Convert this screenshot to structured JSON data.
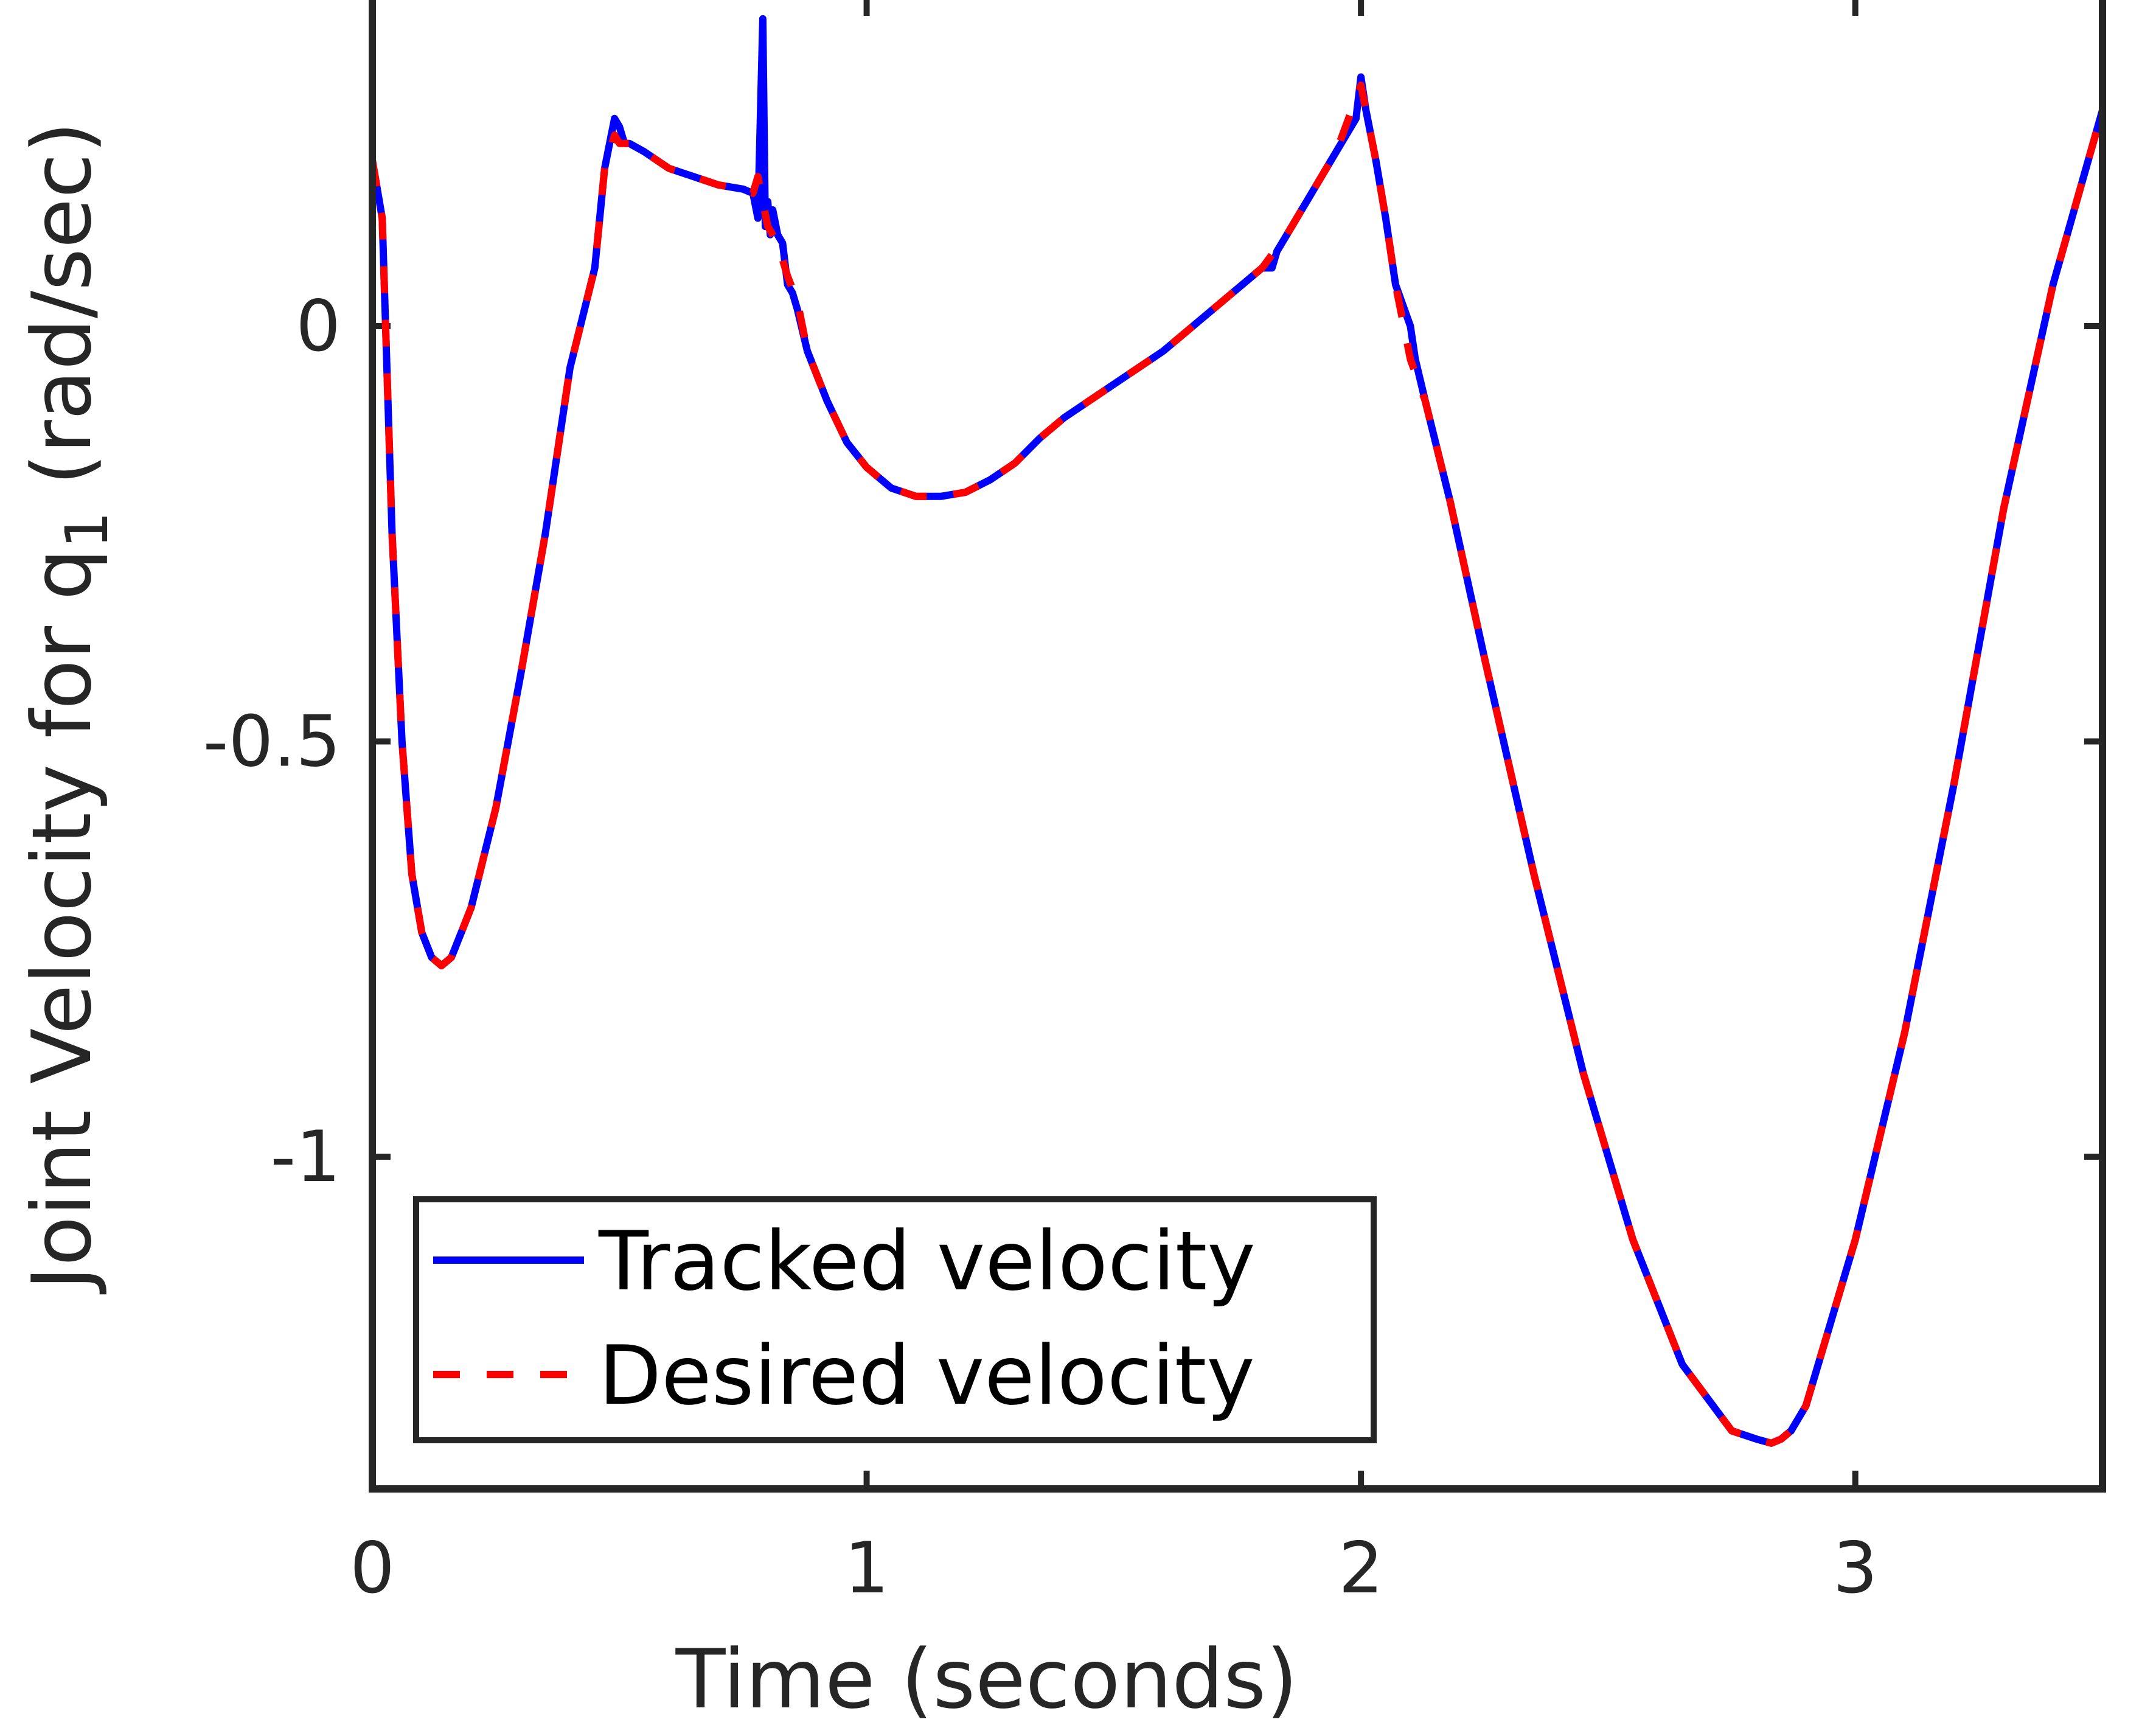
{
  "chart_data": {
    "type": "line",
    "title": "",
    "xlabel": "Time (seconds)",
    "ylabel_main": "Joint Velocity for q",
    "ylabel_subscript": "1",
    "ylabel_unit": "(rad/sec)",
    "xlim": [
      0,
      3.5
    ],
    "ylim": [
      -1.4,
      0.4
    ],
    "xticks": [
      0,
      1,
      2,
      3
    ],
    "xtick_labels": [
      "0",
      "1",
      "2",
      "3"
    ],
    "yticks": [
      -1,
      -0.5,
      0
    ],
    "ytick_labels": [
      "-1",
      "-0.5",
      "0"
    ],
    "grid": false,
    "legend_position": "bottom-left",
    "colors": {
      "tracked": "#0000ff",
      "desired": "#ff0000",
      "axes": "#262626"
    },
    "series": [
      {
        "name": "Tracked velocity",
        "style": "solid",
        "x": [
          0,
          0.02,
          0.04,
          0.06,
          0.08,
          0.1,
          0.12,
          0.14,
          0.16,
          0.18,
          0.2,
          0.25,
          0.3,
          0.35,
          0.4,
          0.45,
          0.47,
          0.49,
          0.5,
          0.51,
          0.52,
          0.55,
          0.6,
          0.65,
          0.7,
          0.75,
          0.77,
          0.78,
          0.79,
          0.795,
          0.8,
          0.805,
          0.81,
          0.82,
          0.83,
          0.84,
          0.85,
          0.86,
          0.88,
          0.92,
          0.96,
          1.0,
          1.05,
          1.1,
          1.15,
          1.2,
          1.25,
          1.3,
          1.35,
          1.4,
          1.45,
          1.5,
          1.6,
          1.7,
          1.8,
          1.82,
          1.83,
          1.85,
          1.9,
          1.95,
          1.99,
          2.0,
          2.01,
          2.03,
          2.05,
          2.07,
          2.1,
          2.11,
          2.13,
          2.18,
          2.25,
          2.35,
          2.45,
          2.55,
          2.65,
          2.75,
          2.8,
          2.83,
          2.85,
          2.87,
          2.9,
          3.0,
          3.1,
          3.2,
          3.3,
          3.4,
          3.5
        ],
        "y": [
          0.2,
          0.13,
          -0.25,
          -0.5,
          -0.66,
          -0.73,
          -0.76,
          -0.77,
          -0.76,
          -0.73,
          -0.7,
          -0.58,
          -0.42,
          -0.25,
          -0.05,
          0.07,
          0.19,
          0.25,
          0.24,
          0.22,
          0.22,
          0.21,
          0.19,
          0.18,
          0.17,
          0.165,
          0.16,
          0.13,
          0.37,
          0.12,
          0.15,
          0.11,
          0.14,
          0.11,
          0.1,
          0.05,
          0.04,
          0.02,
          -0.03,
          -0.09,
          -0.14,
          -0.17,
          -0.195,
          -0.205,
          -0.205,
          -0.2,
          -0.185,
          -0.165,
          -0.135,
          -0.11,
          -0.09,
          -0.07,
          -0.03,
          0.02,
          0.07,
          0.07,
          0.09,
          0.11,
          0.16,
          0.21,
          0.25,
          0.3,
          0.26,
          0.2,
          0.13,
          0.05,
          0.0,
          -0.04,
          -0.09,
          -0.21,
          -0.4,
          -0.66,
          -0.9,
          -1.1,
          -1.25,
          -1.33,
          -1.34,
          -1.345,
          -1.34,
          -1.33,
          -1.3,
          -1.1,
          -0.85,
          -0.55,
          -0.22,
          0.05,
          0.26
        ]
      },
      {
        "name": "Desired velocity",
        "style": "dashed",
        "x": [
          0,
          0.02,
          0.04,
          0.06,
          0.08,
          0.1,
          0.12,
          0.14,
          0.16,
          0.18,
          0.2,
          0.25,
          0.3,
          0.35,
          0.4,
          0.45,
          0.47,
          0.49,
          0.5,
          0.51,
          0.52,
          0.55,
          0.6,
          0.65,
          0.7,
          0.75,
          0.77,
          0.78,
          0.8,
          0.82,
          0.84,
          0.86,
          0.88,
          0.92,
          0.96,
          1.0,
          1.05,
          1.1,
          1.15,
          1.2,
          1.25,
          1.3,
          1.35,
          1.4,
          1.45,
          1.5,
          1.6,
          1.7,
          1.8,
          1.85,
          1.9,
          1.95,
          2.0,
          2.01,
          2.03,
          2.05,
          2.07,
          2.1,
          2.13,
          2.18,
          2.25,
          2.35,
          2.45,
          2.55,
          2.65,
          2.75,
          2.8,
          2.83,
          2.85,
          2.87,
          2.9,
          3.0,
          3.1,
          3.2,
          3.3,
          3.4,
          3.5
        ],
        "y": [
          0.2,
          0.13,
          -0.25,
          -0.5,
          -0.66,
          -0.73,
          -0.76,
          -0.77,
          -0.76,
          -0.73,
          -0.7,
          -0.58,
          -0.42,
          -0.25,
          -0.05,
          0.07,
          0.19,
          0.23,
          0.22,
          0.22,
          0.22,
          0.21,
          0.19,
          0.18,
          0.17,
          0.165,
          0.16,
          0.18,
          0.12,
          0.1,
          0.06,
          0.03,
          -0.03,
          -0.09,
          -0.14,
          -0.17,
          -0.195,
          -0.205,
          -0.205,
          -0.2,
          -0.185,
          -0.165,
          -0.135,
          -0.11,
          -0.09,
          -0.07,
          -0.03,
          0.02,
          0.07,
          0.11,
          0.16,
          0.21,
          0.29,
          0.26,
          0.2,
          0.13,
          0.05,
          -0.04,
          -0.09,
          -0.21,
          -0.4,
          -0.66,
          -0.9,
          -1.1,
          -1.25,
          -1.33,
          -1.34,
          -1.345,
          -1.34,
          -1.33,
          -1.3,
          -1.1,
          -0.85,
          -0.55,
          -0.22,
          0.05,
          0.26
        ]
      }
    ]
  }
}
